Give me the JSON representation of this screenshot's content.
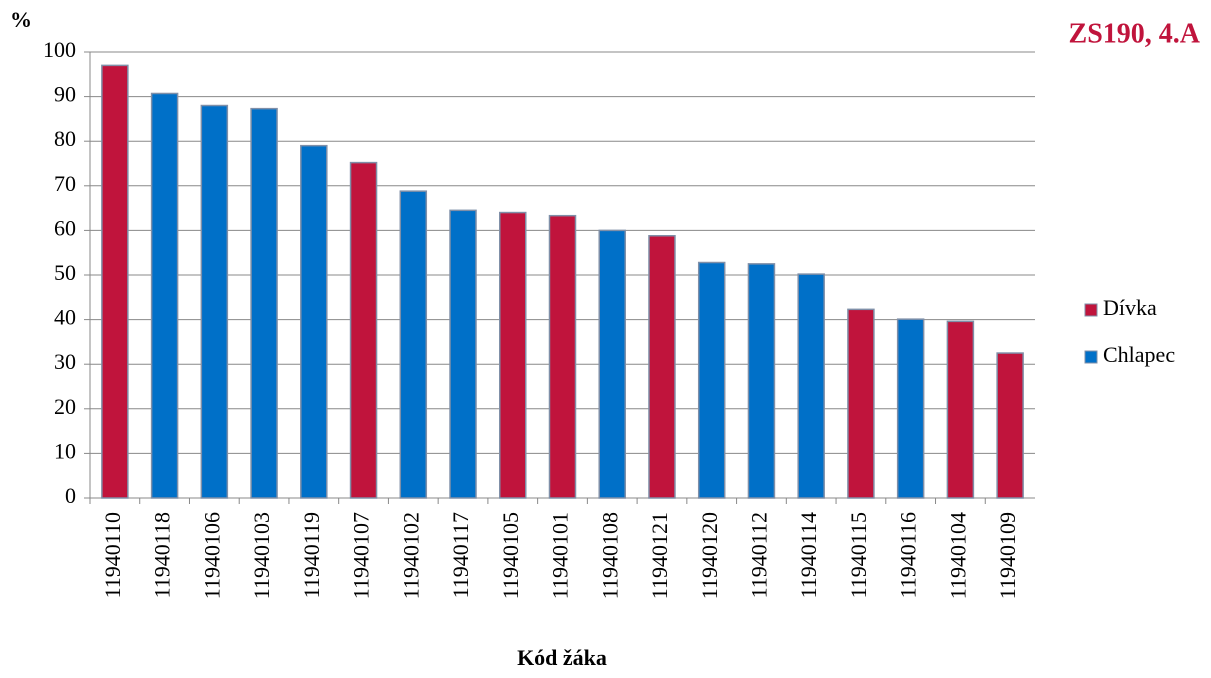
{
  "chart_data": {
    "type": "bar",
    "title": "ZS190, 4.A",
    "y_label": "%",
    "x_label": "Kód žáka",
    "categories": [
      "11940110",
      "11940118",
      "11940106",
      "11940103",
      "11940119",
      "11940107",
      "11940102",
      "11940117",
      "11940105",
      "11940101",
      "11940108",
      "11940121",
      "11940120",
      "11940112",
      "11940114",
      "11940115",
      "11940116",
      "11940104",
      "11940109"
    ],
    "series": [
      {
        "name": "Dívka",
        "color": "#c0143c",
        "values": [
          97,
          null,
          null,
          null,
          null,
          75.2,
          null,
          null,
          64,
          63.3,
          null,
          58.8,
          null,
          null,
          null,
          42.3,
          null,
          39.6,
          32.5
        ]
      },
      {
        "name": "Chlapec",
        "color": "#0070c8",
        "values": [
          null,
          90.7,
          88,
          87.3,
          79,
          null,
          68.8,
          64.5,
          null,
          null,
          60,
          null,
          52.8,
          52.5,
          50.2,
          null,
          40.1,
          null,
          null
        ]
      }
    ],
    "ylim": [
      0,
      100
    ],
    "yticks": [
      0,
      10,
      20,
      30,
      40,
      50,
      60,
      70,
      80,
      90,
      100
    ],
    "grid": true,
    "legend": "right"
  }
}
